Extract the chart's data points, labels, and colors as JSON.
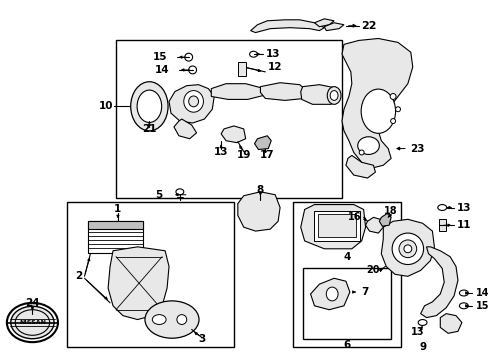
{
  "bg_color": "#ffffff",
  "fig_width": 4.89,
  "fig_height": 3.6,
  "dpi": 100,
  "line_color": "#000000",
  "gray_fill": "#e8e8e8",
  "dark_gray": "#c0c0c0"
}
